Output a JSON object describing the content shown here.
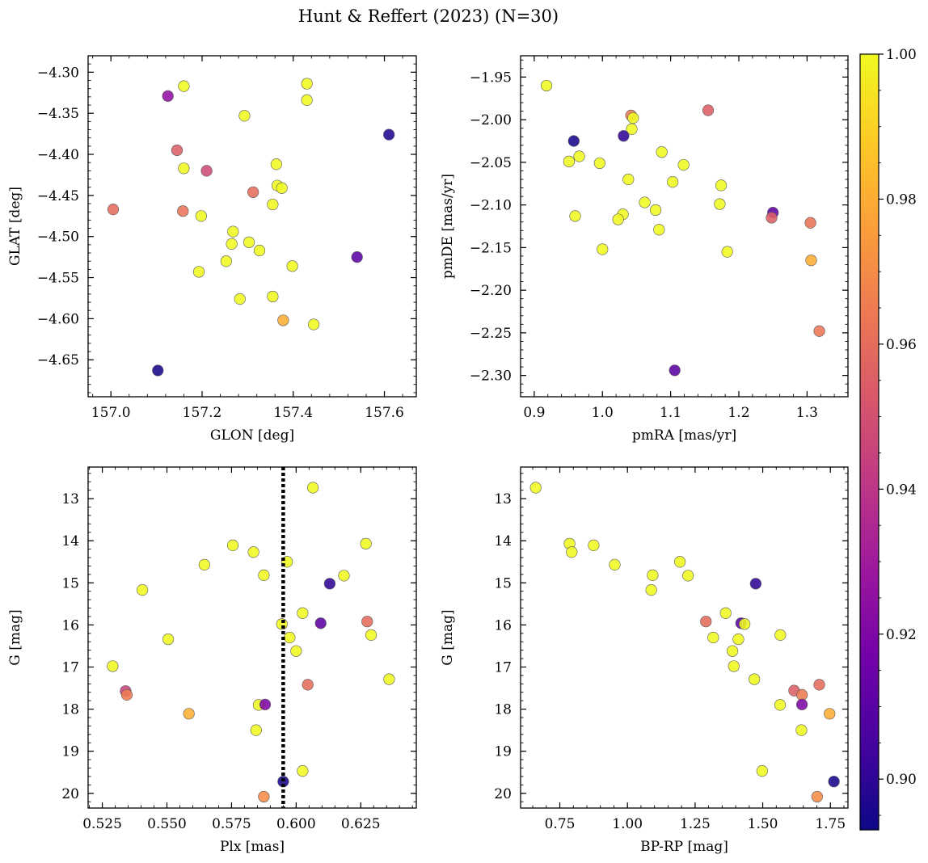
{
  "title": "Hunt & Reffert (2023) (N=30)",
  "colorbar": {
    "min": 0.893,
    "max": 1.0,
    "ticks": [
      0.9,
      0.92,
      0.94,
      0.96,
      0.98,
      1.0
    ],
    "tick_labels": [
      "0.90",
      "0.92",
      "0.94",
      "0.96",
      "0.98",
      "1.00"
    ]
  },
  "chart_data": [
    {
      "type": "scatter",
      "xlabel": "GLON [deg]",
      "ylabel": "GLAT [deg]",
      "xlim": [
        156.95,
        157.67
      ],
      "ylim": [
        -4.695,
        -4.28
      ],
      "y_inverted": false,
      "xticks": [
        157.0,
        157.2,
        157.4,
        157.6
      ],
      "xtick_labels": [
        "157.0",
        "157.2",
        "157.4",
        "157.6"
      ],
      "yticks": [
        -4.3,
        -4.35,
        -4.4,
        -4.45,
        -4.5,
        -4.55,
        -4.6,
        -4.65
      ],
      "ytick_labels": [
        "−4.30",
        "−4.35",
        "−4.40",
        "−4.45",
        "−4.50",
        "−4.55",
        "−4.60",
        "−4.65"
      ],
      "points": [
        [
          157.125,
          -4.329,
          0.925
        ],
        [
          157.16,
          -4.317,
          1.0
        ],
        [
          157.43,
          -4.314,
          1.0
        ],
        [
          157.43,
          -4.334,
          1.0
        ],
        [
          157.293,
          -4.353,
          1.0
        ],
        [
          157.61,
          -4.376,
          0.897
        ],
        [
          157.145,
          -4.395,
          0.955
        ],
        [
          157.363,
          -4.412,
          1.0
        ],
        [
          157.16,
          -4.417,
          1.0
        ],
        [
          157.21,
          -4.42,
          0.948
        ],
        [
          157.312,
          -4.446,
          0.96
        ],
        [
          157.365,
          -4.438,
          1.0
        ],
        [
          157.375,
          -4.441,
          1.0
        ],
        [
          157.355,
          -4.461,
          1.0
        ],
        [
          157.005,
          -4.467,
          0.96
        ],
        [
          157.158,
          -4.469,
          0.962
        ],
        [
          157.198,
          -4.475,
          1.0
        ],
        [
          157.268,
          -4.494,
          1.0
        ],
        [
          157.303,
          -4.507,
          1.0
        ],
        [
          157.265,
          -4.509,
          1.0
        ],
        [
          157.326,
          -4.517,
          1.0
        ],
        [
          157.54,
          -4.525,
          0.91
        ],
        [
          157.253,
          -4.53,
          1.0
        ],
        [
          157.398,
          -4.536,
          1.0
        ],
        [
          157.193,
          -4.543,
          1.0
        ],
        [
          157.355,
          -4.573,
          1.0
        ],
        [
          157.283,
          -4.576,
          1.0
        ],
        [
          157.378,
          -4.602,
          0.98
        ],
        [
          157.445,
          -4.607,
          1.0
        ],
        [
          157.103,
          -4.663,
          0.895
        ]
      ]
    },
    {
      "type": "scatter",
      "xlabel": "pmRA [mas/yr]",
      "ylabel": "pmDE [mas/yr]",
      "xlim": [
        0.88,
        1.36
      ],
      "ylim": [
        -2.325,
        -1.925
      ],
      "y_inverted": false,
      "xticks": [
        0.9,
        1.0,
        1.1,
        1.2,
        1.3
      ],
      "xtick_labels": [
        "0.9",
        "1.0",
        "1.1",
        "1.2",
        "1.3"
      ],
      "yticks": [
        -1.95,
        -2.0,
        -2.05,
        -2.1,
        -2.15,
        -2.2,
        -2.25,
        -2.3
      ],
      "ytick_labels": [
        "−1.95",
        "−2.00",
        "−2.05",
        "−2.10",
        "−2.15",
        "−2.20",
        "−2.25",
        "−2.30"
      ],
      "points": [
        [
          0.918,
          -1.96,
          1.0
        ],
        [
          1.155,
          -1.989,
          0.955
        ],
        [
          1.042,
          -1.995,
          0.965
        ],
        [
          1.045,
          -1.998,
          1.0
        ],
        [
          0.958,
          -2.025,
          0.895
        ],
        [
          1.043,
          -2.011,
          1.0
        ],
        [
          1.031,
          -2.019,
          0.9
        ],
        [
          1.087,
          -2.038,
          1.0
        ],
        [
          0.966,
          -2.043,
          1.0
        ],
        [
          0.951,
          -2.049,
          1.0
        ],
        [
          0.996,
          -2.051,
          1.0
        ],
        [
          1.119,
          -2.053,
          1.0
        ],
        [
          1.038,
          -2.07,
          1.0
        ],
        [
          1.103,
          -2.073,
          1.0
        ],
        [
          1.174,
          -2.077,
          1.0
        ],
        [
          1.062,
          -2.097,
          1.0
        ],
        [
          1.172,
          -2.099,
          1.0
        ],
        [
          1.078,
          -2.106,
          1.0
        ],
        [
          1.25,
          -2.109,
          0.912
        ],
        [
          1.03,
          -2.111,
          1.0
        ],
        [
          0.96,
          -2.113,
          1.0
        ],
        [
          1.248,
          -2.115,
          0.955
        ],
        [
          1.023,
          -2.117,
          1.0
        ],
        [
          1.305,
          -2.121,
          0.962
        ],
        [
          1.083,
          -2.129,
          1.0
        ],
        [
          1.0,
          -2.152,
          1.0
        ],
        [
          1.183,
          -2.155,
          1.0
        ],
        [
          1.306,
          -2.165,
          0.98
        ],
        [
          1.318,
          -2.248,
          0.963
        ],
        [
          1.106,
          -2.294,
          0.91
        ]
      ]
    },
    {
      "type": "scatter",
      "xlabel": "Plx [mas]",
      "ylabel": "G [mag]",
      "xlim": [
        0.5195,
        0.6465
      ],
      "ylim": [
        20.35,
        12.25
      ],
      "y_inverted": true,
      "xticks": [
        0.525,
        0.55,
        0.575,
        0.6,
        0.625
      ],
      "xtick_labels": [
        "0.525",
        "0.550",
        "0.575",
        "0.600",
        "0.625"
      ],
      "yticks": [
        13,
        14,
        15,
        16,
        17,
        18,
        19,
        20
      ],
      "ytick_labels": [
        "13",
        "14",
        "15",
        "16",
        "17",
        "18",
        "19",
        "20"
      ],
      "vline": 0.595,
      "points": [
        [
          0.6065,
          12.74,
          1.0
        ],
        [
          0.5755,
          14.11,
          1.0
        ],
        [
          0.627,
          14.07,
          1.0
        ],
        [
          0.5835,
          14.27,
          1.0
        ],
        [
          0.5645,
          14.57,
          1.0
        ],
        [
          0.5965,
          14.5,
          1.0
        ],
        [
          0.5875,
          14.82,
          1.0
        ],
        [
          0.6185,
          14.83,
          1.0
        ],
        [
          0.613,
          15.02,
          0.9
        ],
        [
          0.5405,
          15.17,
          1.0
        ],
        [
          0.6025,
          15.72,
          1.0
        ],
        [
          0.5505,
          16.34,
          1.0
        ],
        [
          0.629,
          16.24,
          1.0
        ],
        [
          0.5945,
          15.98,
          1.0
        ],
        [
          0.6095,
          15.96,
          0.91
        ],
        [
          0.6275,
          15.92,
          0.96
        ],
        [
          0.5975,
          16.3,
          1.0
        ],
        [
          0.6,
          16.62,
          1.0
        ],
        [
          0.529,
          16.98,
          1.0
        ],
        [
          0.636,
          17.29,
          1.0
        ],
        [
          0.6045,
          17.42,
          0.96
        ],
        [
          0.534,
          17.57,
          0.945
        ],
        [
          0.5345,
          17.66,
          0.965
        ],
        [
          0.5855,
          17.9,
          1.0
        ],
        [
          0.588,
          17.89,
          0.92
        ],
        [
          0.5585,
          18.11,
          0.98
        ],
        [
          0.5845,
          18.5,
          1.0
        ],
        [
          0.6025,
          19.47,
          1.0
        ],
        [
          0.595,
          19.72,
          0.895
        ],
        [
          0.5875,
          20.08,
          0.97
        ]
      ]
    },
    {
      "type": "scatter",
      "xlabel": "BP-RP [mag]",
      "ylabel": "G [mag]",
      "xlim": [
        0.605,
        1.815
      ],
      "ylim": [
        20.35,
        12.25
      ],
      "y_inverted": true,
      "xticks": [
        0.75,
        1.0,
        1.25,
        1.5,
        1.75
      ],
      "xtick_labels": [
        "0.75",
        "1.00",
        "1.25",
        "1.50",
        "1.75"
      ],
      "yticks": [
        13,
        14,
        15,
        16,
        17,
        18,
        19,
        20
      ],
      "ytick_labels": [
        "13",
        "14",
        "15",
        "16",
        "17",
        "18",
        "19",
        "20"
      ],
      "points": [
        [
          0.661,
          12.74,
          1.0
        ],
        [
          0.786,
          14.07,
          1.0
        ],
        [
          0.875,
          14.11,
          1.0
        ],
        [
          0.794,
          14.27,
          1.0
        ],
        [
          0.953,
          14.57,
          1.0
        ],
        [
          1.194,
          14.5,
          1.0
        ],
        [
          1.093,
          14.82,
          1.0
        ],
        [
          1.224,
          14.83,
          1.0
        ],
        [
          1.474,
          15.02,
          0.9
        ],
        [
          1.088,
          15.17,
          1.0
        ],
        [
          1.363,
          15.72,
          1.0
        ],
        [
          1.317,
          16.3,
          1.0
        ],
        [
          1.565,
          16.24,
          1.0
        ],
        [
          1.29,
          15.92,
          0.96
        ],
        [
          1.42,
          15.96,
          0.91
        ],
        [
          1.433,
          15.98,
          1.0
        ],
        [
          1.41,
          16.34,
          1.0
        ],
        [
          1.388,
          16.62,
          1.0
        ],
        [
          1.393,
          16.98,
          1.0
        ],
        [
          1.469,
          17.29,
          1.0
        ],
        [
          1.709,
          17.42,
          0.96
        ],
        [
          1.616,
          17.56,
          0.955
        ],
        [
          1.645,
          17.66,
          0.965
        ],
        [
          1.564,
          17.9,
          1.0
        ],
        [
          1.645,
          17.89,
          0.92
        ],
        [
          1.747,
          18.11,
          0.98
        ],
        [
          1.643,
          18.5,
          1.0
        ],
        [
          1.498,
          19.47,
          1.0
        ],
        [
          1.763,
          19.72,
          0.895
        ],
        [
          1.701,
          20.08,
          0.97
        ]
      ]
    }
  ]
}
